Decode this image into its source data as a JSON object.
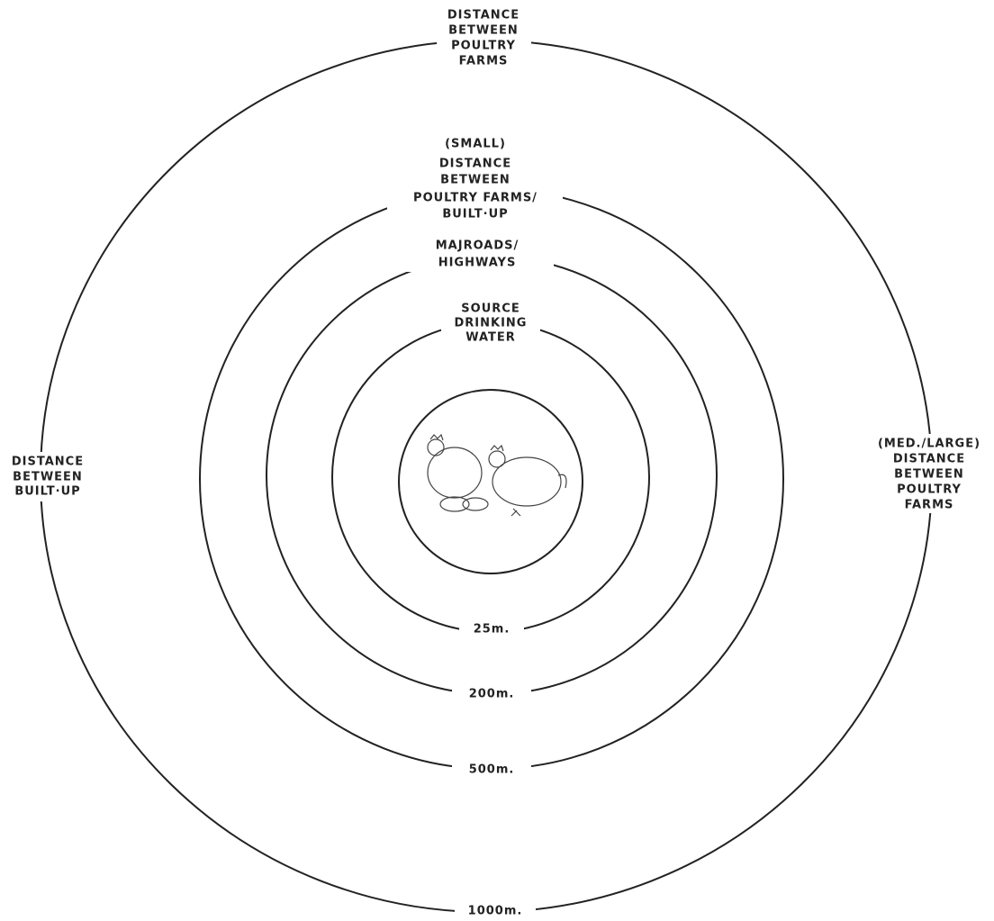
{
  "rings": [
    {
      "top_label": [
        "SOURCE",
        "DRINKING",
        "WATER"
      ],
      "bottom_label": "25m."
    },
    {
      "top_label": [
        "MAJROADS/",
        "HIGHWAYS"
      ],
      "bottom_label": "200m."
    },
    {
      "top_label": [
        "(SMALL)",
        "DISTANCE",
        "BETWEEN",
        "POULTRY FARMS/",
        "BUILT·UP"
      ],
      "bottom_label": "500m."
    },
    {
      "top_label": [
        "DISTANCE",
        "BETWEEN",
        "POULTRY",
        "FARMS"
      ],
      "left_label": [
        "DISTANCE",
        "BETWEEN",
        "BUILT·UP"
      ],
      "right_label": [
        "(MED./LARGE)",
        "DISTANCE",
        "BETWEEN",
        "POULTRY",
        "FARMS"
      ],
      "bottom_label": "1000m."
    }
  ]
}
